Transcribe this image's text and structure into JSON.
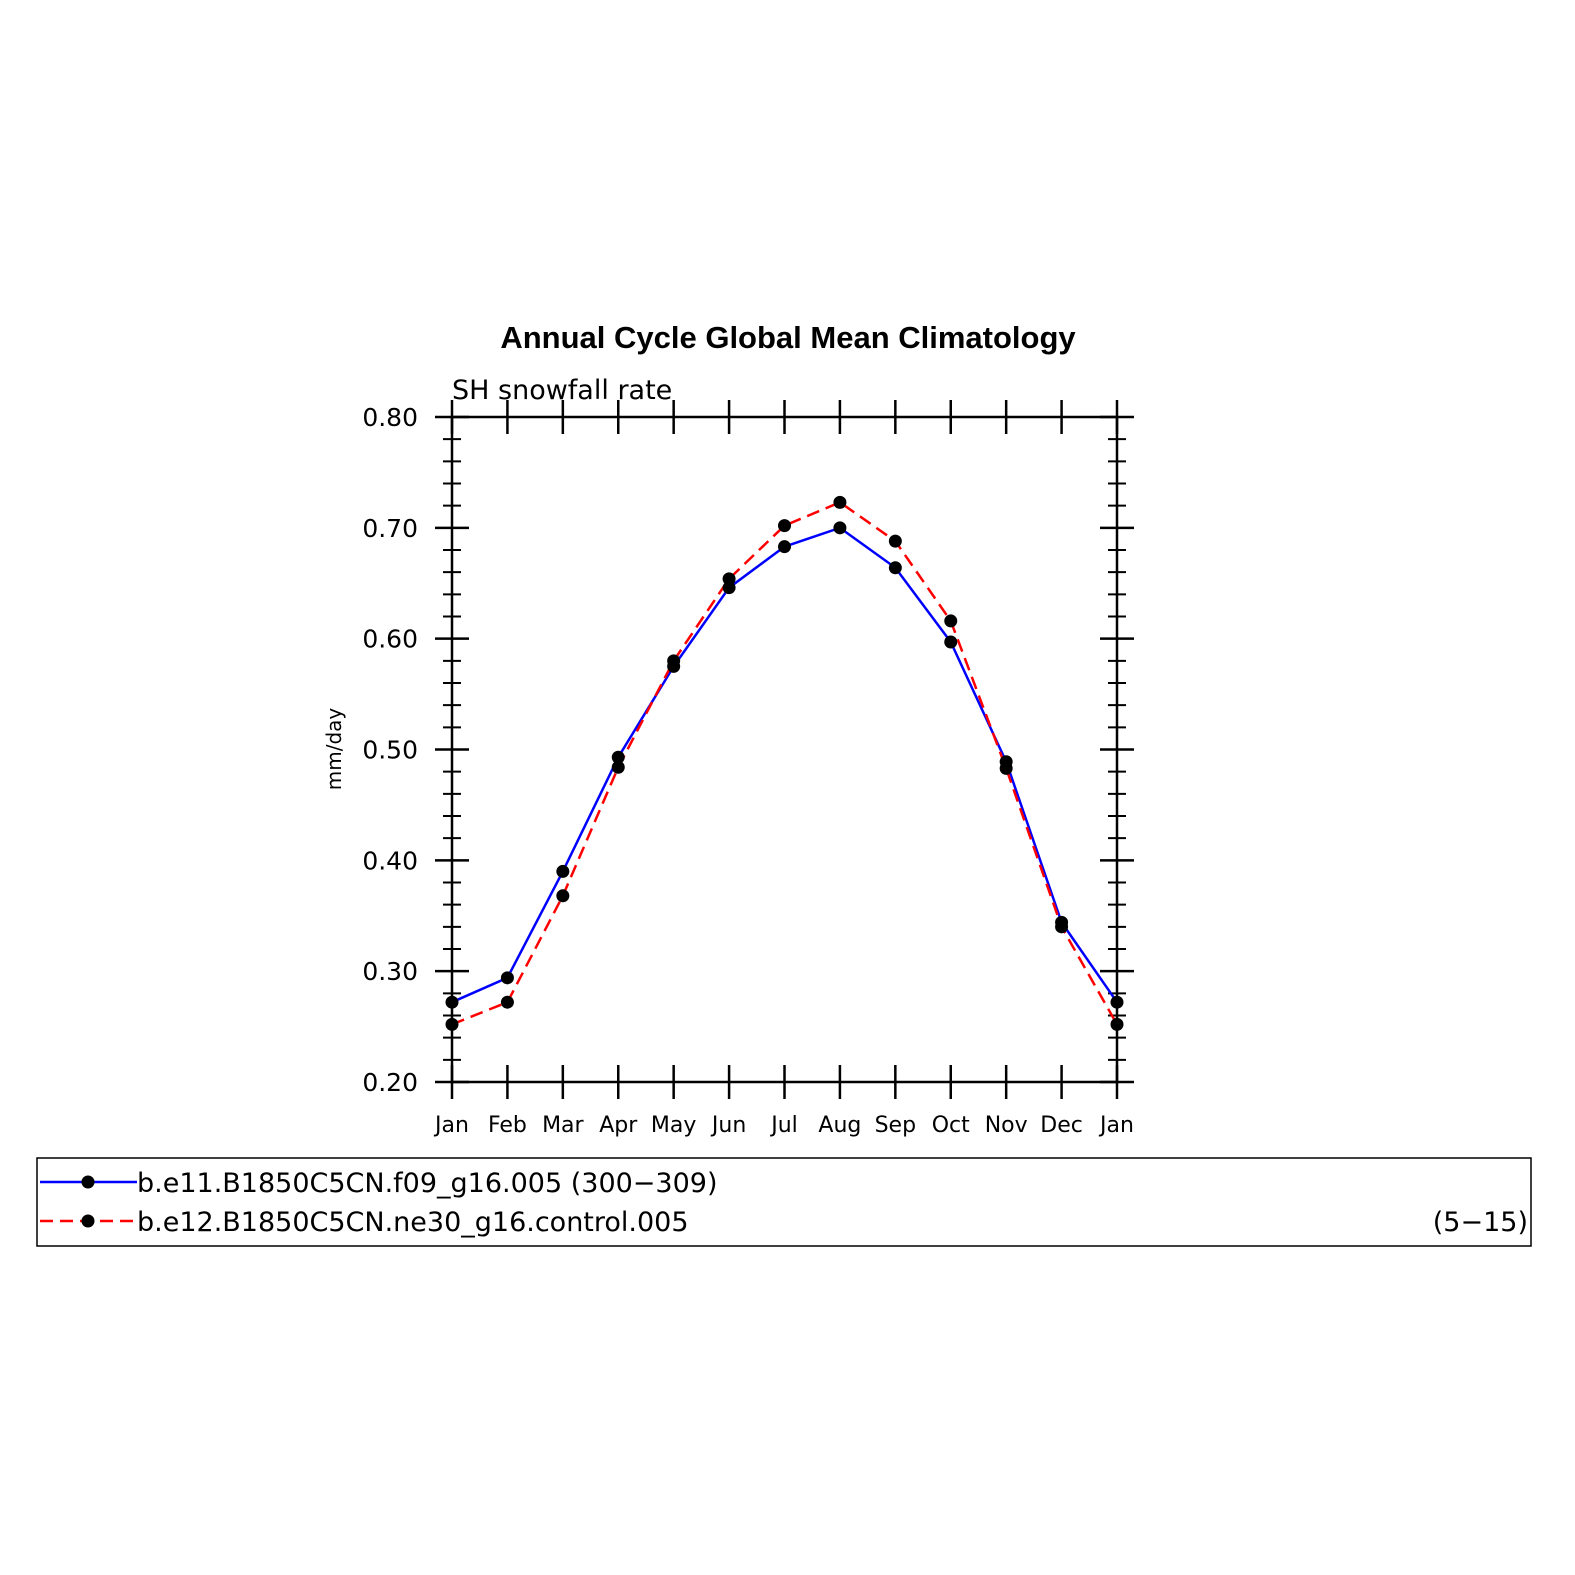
{
  "chart_data": {
    "type": "line",
    "title": "Annual Cycle Global Mean Climatology",
    "subtitle": "SH snowfall rate",
    "ylabel": "mm/day",
    "xlabel": "",
    "ylim": [
      0.2,
      0.8
    ],
    "yticks": [
      "0.20",
      "0.30",
      "0.40",
      "0.50",
      "0.60",
      "0.70",
      "0.80"
    ],
    "categories": [
      "Jan",
      "Feb",
      "Mar",
      "Apr",
      "May",
      "Jun",
      "Jul",
      "Aug",
      "Sep",
      "Oct",
      "Nov",
      "Dec",
      "Jan"
    ],
    "series": [
      {
        "name": "b.e11.B1850C5CN.f09_g16.005 (300−309)",
        "color": "#0000ff",
        "dash": "solid",
        "values": [
          0.272,
          0.294,
          0.39,
          0.493,
          0.575,
          0.646,
          0.683,
          0.7,
          0.664,
          0.597,
          0.489,
          0.344,
          0.272
        ]
      },
      {
        "name": "b.e12.B1850C5CN.ne30_g16.control.005",
        "suffix": "(5−15)",
        "color": "#ff0000",
        "dash": "dashed",
        "values": [
          0.252,
          0.272,
          0.368,
          0.484,
          0.58,
          0.654,
          0.702,
          0.723,
          0.688,
          0.616,
          0.483,
          0.34,
          0.252
        ]
      }
    ],
    "legend_position": "bottom",
    "grid": false
  }
}
